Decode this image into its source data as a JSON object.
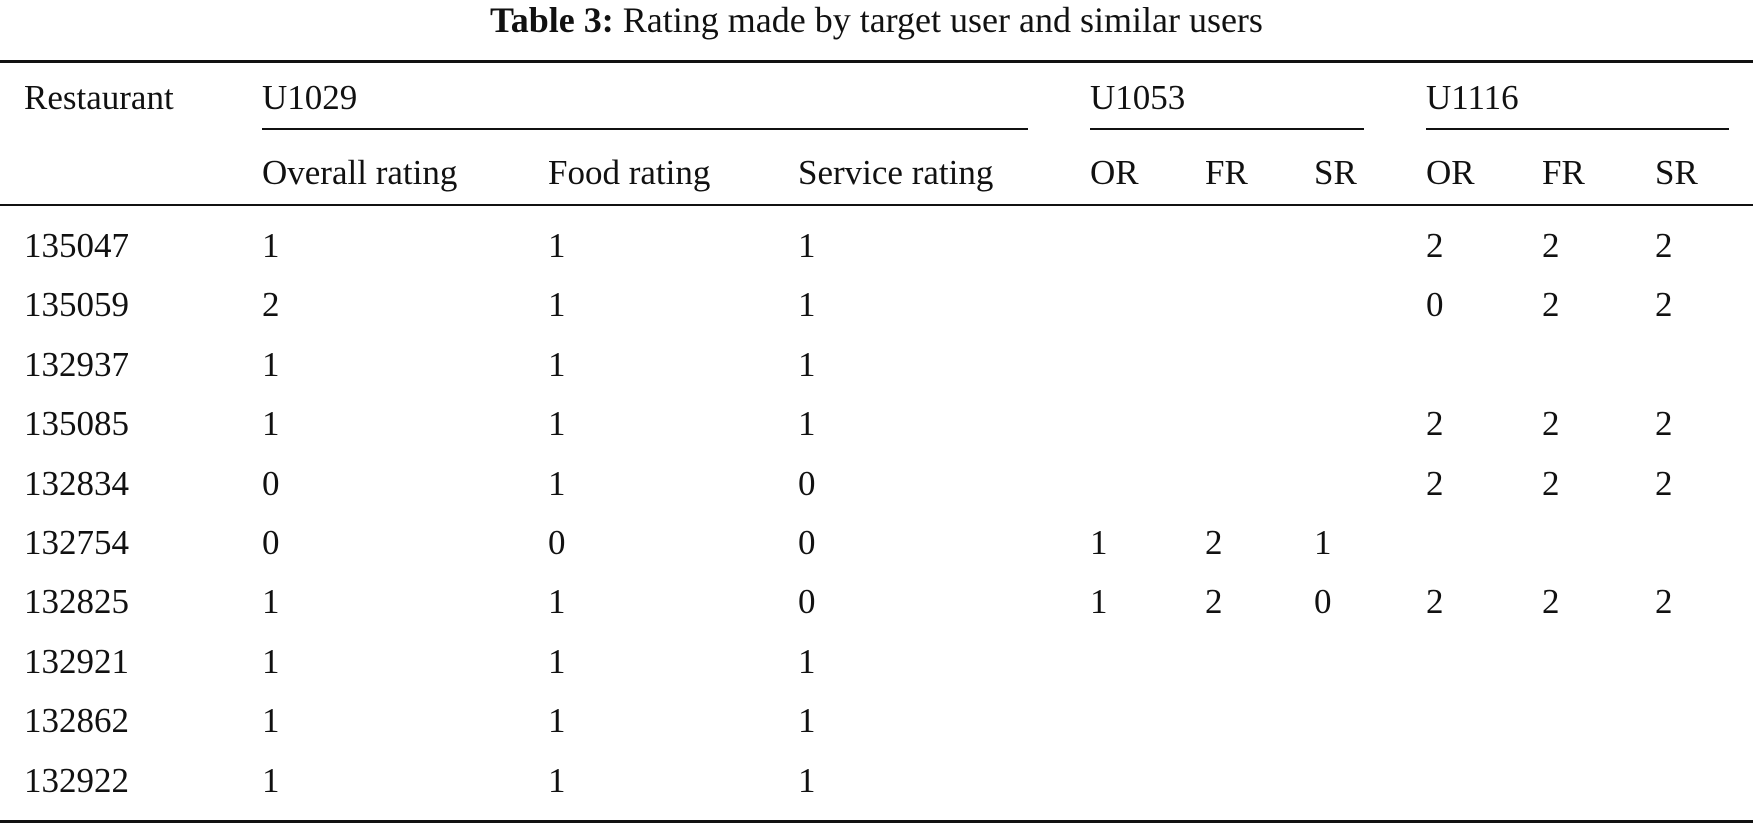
{
  "table": {
    "caption_label": "Table 3:",
    "caption_text": "Rating made by target user and similar users",
    "header": {
      "restaurant": "Restaurant",
      "groups": [
        "U1029",
        "U1053",
        "U1116"
      ],
      "subheaders": [
        "Overall rating",
        "Food rating",
        "Service rating",
        "OR",
        "FR",
        "SR",
        "OR",
        "FR",
        "SR"
      ]
    },
    "rows": [
      [
        "135047",
        "1",
        "1",
        "1",
        "",
        "",
        "",
        "2",
        "2",
        "2"
      ],
      [
        "135059",
        "2",
        "1",
        "1",
        "",
        "",
        "",
        "0",
        "2",
        "2"
      ],
      [
        "132937",
        "1",
        "1",
        "1",
        "",
        "",
        "",
        "",
        "",
        ""
      ],
      [
        "135085",
        "1",
        "1",
        "1",
        "",
        "",
        "",
        "2",
        "2",
        "2"
      ],
      [
        "132834",
        "0",
        "1",
        "0",
        "",
        "",
        "",
        "2",
        "2",
        "2"
      ],
      [
        "132754",
        "0",
        "0",
        "0",
        "1",
        "2",
        "1",
        "",
        "",
        ""
      ],
      [
        "132825",
        "1",
        "1",
        "0",
        "1",
        "2",
        "0",
        "2",
        "2",
        "2"
      ],
      [
        "132921",
        "1",
        "1",
        "1",
        "",
        "",
        "",
        "",
        "",
        ""
      ],
      [
        "132862",
        "1",
        "1",
        "1",
        "",
        "",
        "",
        "",
        "",
        ""
      ],
      [
        "132922",
        "1",
        "1",
        "1",
        "",
        "",
        "",
        "",
        "",
        ""
      ]
    ]
  }
}
